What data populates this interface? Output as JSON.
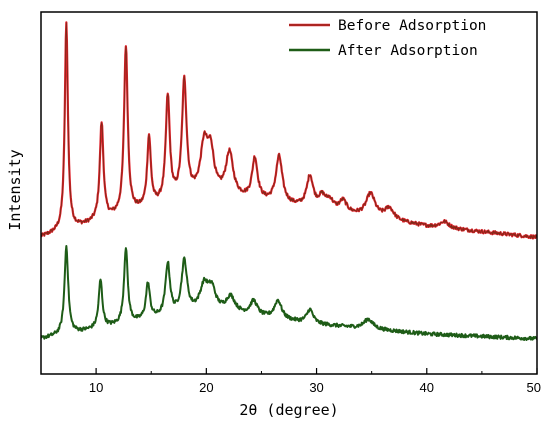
{
  "chart_data": {
    "type": "line",
    "title": "",
    "xlabel": "2θ (degree)",
    "ylabel": "Intensity",
    "xlim": [
      5,
      50
    ],
    "x_ticks": [
      10,
      20,
      30,
      40,
      50
    ],
    "y_ticks_shown": false,
    "grid": false,
    "legend_position": "top-right",
    "series": [
      {
        "name": "Before Adsorption",
        "color": "#e0202a",
        "outline_color": "#7a2a18",
        "baseline": 0.6,
        "decay": [
          [
            5,
            0
          ],
          [
            20,
            5.5
          ],
          [
            30,
            3.5
          ],
          [
            40,
            1.4
          ],
          [
            50,
            0
          ]
        ],
        "peaks": [
          {
            "x": 7.3,
            "height": 26.5,
            "width": 0.17
          },
          {
            "x": 10.5,
            "height": 12.5,
            "width": 0.2
          },
          {
            "x": 12.7,
            "height": 21.5,
            "width": 0.2
          },
          {
            "x": 14.8,
            "height": 9.0,
            "width": 0.2
          },
          {
            "x": 16.5,
            "height": 13.5,
            "width": 0.22
          },
          {
            "x": 18.0,
            "height": 15.0,
            "width": 0.25
          },
          {
            "x": 19.8,
            "height": 6.0,
            "width": 0.4
          },
          {
            "x": 20.4,
            "height": 5.0,
            "width": 0.35
          },
          {
            "x": 22.1,
            "height": 5.5,
            "width": 0.4
          },
          {
            "x": 24.4,
            "height": 5.3,
            "width": 0.3
          },
          {
            "x": 26.6,
            "height": 6.0,
            "width": 0.35
          },
          {
            "x": 29.4,
            "height": 4.0,
            "width": 0.35
          },
          {
            "x": 30.5,
            "height": 1.5,
            "width": 0.4
          },
          {
            "x": 31.2,
            "height": 1.2,
            "width": 0.4
          },
          {
            "x": 32.4,
            "height": 1.5,
            "width": 0.4
          },
          {
            "x": 34.9,
            "height": 3.0,
            "width": 0.5
          },
          {
            "x": 36.6,
            "height": 1.5,
            "width": 0.5
          },
          {
            "x": 41.6,
            "height": 0.8,
            "width": 0.5
          }
        ]
      },
      {
        "name": "After Adsorption",
        "color": "#1e5c17",
        "outline_color": "#1e5c17",
        "baseline": 0.4,
        "decay": [
          [
            5,
            0
          ],
          [
            20,
            3.5
          ],
          [
            30,
            1.8
          ],
          [
            40,
            0.6
          ],
          [
            50,
            0
          ]
        ],
        "peaks": [
          {
            "x": 7.3,
            "height": 11.0,
            "width": 0.2
          },
          {
            "x": 10.4,
            "height": 6.0,
            "width": 0.2
          },
          {
            "x": 12.7,
            "height": 9.5,
            "width": 0.2
          },
          {
            "x": 14.7,
            "height": 4.5,
            "width": 0.22
          },
          {
            "x": 16.5,
            "height": 6.5,
            "width": 0.25
          },
          {
            "x": 18.0,
            "height": 6.5,
            "width": 0.3
          },
          {
            "x": 19.8,
            "height": 3.0,
            "width": 0.45
          },
          {
            "x": 20.5,
            "height": 2.5,
            "width": 0.4
          },
          {
            "x": 22.2,
            "height": 2.0,
            "width": 0.5
          },
          {
            "x": 24.3,
            "height": 1.8,
            "width": 0.4
          },
          {
            "x": 26.5,
            "height": 2.3,
            "width": 0.4
          },
          {
            "x": 29.4,
            "height": 1.7,
            "width": 0.35
          },
          {
            "x": 34.7,
            "height": 1.2,
            "width": 0.5
          }
        ]
      }
    ]
  }
}
